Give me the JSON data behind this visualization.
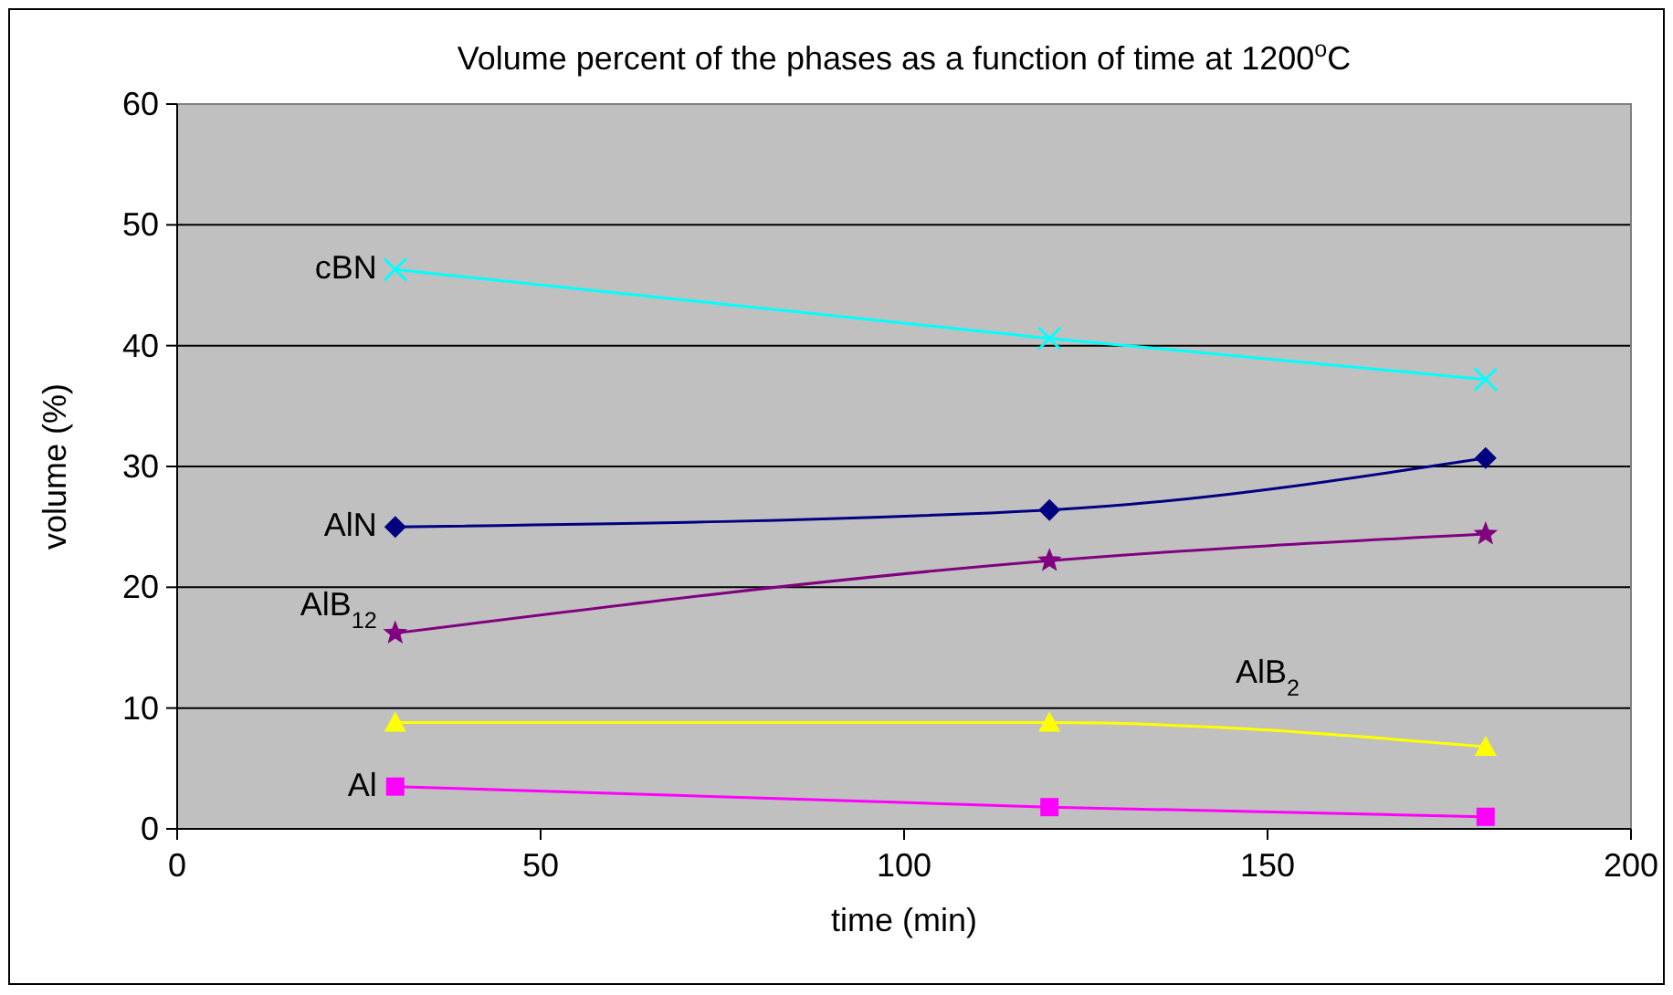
{
  "chart_data": {
    "type": "line",
    "title": "Volume percent of the phases as a function of time at 1200$^{o}$C",
    "xlabel": "time (min)",
    "ylabel": "volume (%)",
    "x": [
      30,
      120,
      180
    ],
    "series": [
      {
        "name": "cBN",
        "color": "#00ffff",
        "marker": "cross",
        "values": [
          46.3,
          40.6,
          37.2
        ]
      },
      {
        "name": "AlN",
        "color": "#000080",
        "marker": "diamond",
        "values": [
          25.0,
          26.4,
          30.7
        ]
      },
      {
        "name": "AlB$_{12}$",
        "color": "#800080",
        "marker": "star",
        "values": [
          16.2,
          22.2,
          24.4
        ]
      },
      {
        "name": "AlB$_{2}$",
        "color": "#ffff00",
        "marker": "triangle",
        "values": [
          8.8,
          8.8,
          6.8
        ]
      },
      {
        "name": "Al",
        "color": "#ff00ff",
        "marker": "square",
        "values": [
          3.5,
          1.8,
          1.0
        ]
      }
    ],
    "xlim": [
      0,
      200
    ],
    "xticks": [
      0,
      50,
      100,
      150,
      200
    ],
    "ylim": [
      0,
      60
    ],
    "yticks": [
      0,
      10,
      20,
      30,
      40,
      50,
      60
    ],
    "grid": "y"
  }
}
